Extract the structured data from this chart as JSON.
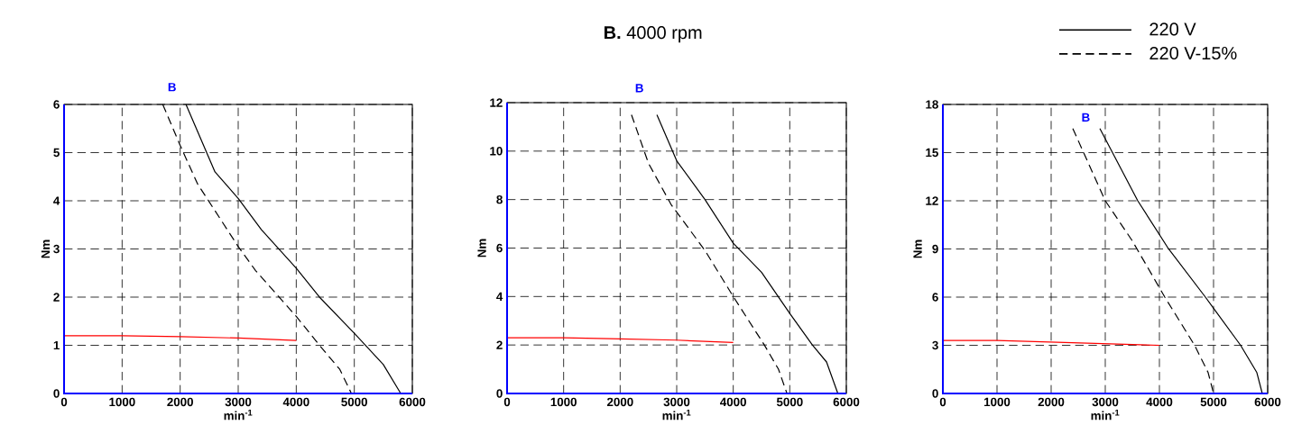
{
  "chart_data": [
    {
      "type": "line",
      "xlabel": "min$^{-1}$",
      "ylabel": "Nm",
      "xlim": [
        0,
        6000
      ],
      "ylim": [
        0,
        6
      ],
      "xticks": [
        0,
        1000,
        2000,
        3000,
        4000,
        5000,
        6000
      ],
      "yticks": [
        0,
        1,
        2,
        3,
        4,
        5,
        6
      ],
      "grid": true,
      "annotations": [
        "B"
      ],
      "series": [
        {
          "color": "#000000",
          "line_style": "solid",
          "x": [
            2100,
            2600,
            3000,
            3400,
            4000,
            4400,
            5000,
            5500,
            5800
          ],
          "values": [
            6,
            4.6,
            4.05,
            3.4,
            2.6,
            2.0,
            1.25,
            0.6,
            0
          ]
        },
        {
          "color": "#000000",
          "line_style": "dashed",
          "x": [
            1700,
            2000,
            2300,
            3000,
            3300,
            4000,
            4400,
            4750,
            4950
          ],
          "values": [
            6,
            5.15,
            4.35,
            3.05,
            2.55,
            1.6,
            1.0,
            0.5,
            0
          ]
        },
        {
          "color": "#ff0000",
          "line_style": "solid",
          "x": [
            0,
            1000,
            2000,
            3000,
            4000
          ],
          "values": [
            1.2,
            1.2,
            1.18,
            1.15,
            1.1
          ]
        }
      ]
    },
    {
      "type": "line",
      "title": "**B.** 4000 rpm",
      "xlabel": "min$^{-1}$",
      "ylabel": "Nm",
      "xlim": [
        0,
        6000
      ],
      "ylim": [
        0,
        12
      ],
      "xticks": [
        0,
        1000,
        2000,
        3000,
        4000,
        5000,
        6000
      ],
      "yticks": [
        0,
        2,
        4,
        6,
        8,
        10,
        12
      ],
      "grid": true,
      "annotations": [
        "B"
      ],
      "series": [
        {
          "color": "#000000",
          "line_style": "solid",
          "x": [
            2650,
            3000,
            3500,
            4000,
            4500,
            5000,
            5400,
            5650,
            5850
          ],
          "values": [
            11.5,
            9.6,
            8.0,
            6.2,
            5.0,
            3.3,
            2.0,
            1.3,
            0
          ]
        },
        {
          "color": "#000000",
          "line_style": "dashed",
          "x": [
            2200,
            2500,
            2900,
            3500,
            4000,
            4550,
            4800,
            4950
          ],
          "values": [
            11.5,
            9.5,
            7.8,
            5.9,
            4.0,
            2.0,
            1.0,
            0
          ]
        },
        {
          "color": "#ff0000",
          "line_style": "solid",
          "x": [
            0,
            1000,
            2000,
            3000,
            4000
          ],
          "values": [
            2.3,
            2.3,
            2.25,
            2.2,
            2.1
          ]
        }
      ]
    },
    {
      "type": "line",
      "xlabel": "min$^{-1}$",
      "ylabel": "Nm",
      "xlim": [
        0,
        6000
      ],
      "ylim": [
        0,
        18
      ],
      "xticks": [
        0,
        1000,
        2000,
        3000,
        4000,
        5000,
        6000
      ],
      "yticks": [
        0,
        3,
        6,
        9,
        12,
        15,
        18
      ],
      "grid": true,
      "legend": "top right",
      "annotations": [
        "B"
      ],
      "series": [
        {
          "name": "220 V",
          "color": "#000000",
          "line_style": "solid",
          "x": [
            2900,
            3600,
            4170,
            4850,
            5000,
            5500,
            5800,
            5900
          ],
          "values": [
            16.5,
            12.0,
            9,
            6,
            5.3,
            3,
            1.3,
            0
          ]
        },
        {
          "name": "220 V-15%",
          "color": "#000000",
          "line_style": "dashed",
          "x": [
            2400,
            2600,
            3000,
            3500,
            4100,
            4650,
            4900,
            5000
          ],
          "values": [
            16.5,
            15,
            12,
            9.5,
            6,
            3,
            1.3,
            0
          ]
        },
        {
          "color": "#ff0000",
          "line_style": "solid",
          "x": [
            0,
            1000,
            2000,
            3000,
            4000
          ],
          "values": [
            3.3,
            3.3,
            3.2,
            3.1,
            3.0
          ]
        }
      ]
    }
  ]
}
